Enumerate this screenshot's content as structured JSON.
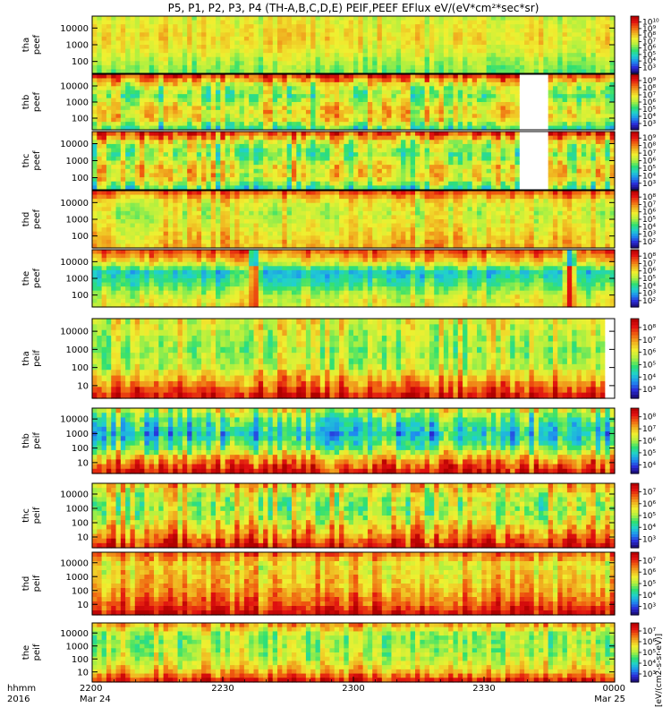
{
  "chart_data": {
    "type": "heatmap",
    "title": "P5, P1, P2, P3, P4 (TH-A,B,C,D,E) PEIF,PEEF EFlux eV/(eV*cm²*sec*sr)",
    "colorbar_label": "[eV/(cm2-s-sr-eV)]",
    "colormap": [
      "#1a0a6e",
      "#2a2cd8",
      "#1f8cf0",
      "#20d0d0",
      "#30e070",
      "#b0f040",
      "#f0f030",
      "#f0b020",
      "#f06010",
      "#e01010",
      "#b00000"
    ],
    "panels": [
      {
        "label_top": "tha",
        "label_bottom": "peef",
        "yticks": [
          "10000",
          "1000",
          "100"
        ],
        "cbar_ticks": [
          "10¹⁰",
          "10⁹",
          "10⁸",
          "10⁷",
          "10⁶",
          "10⁵",
          "10⁴",
          "10³"
        ],
        "profile": [
          0.55,
          0.6,
          0.62,
          0.58,
          0.5,
          0.45
        ],
        "variability": 0.08,
        "gap": null,
        "dips": []
      },
      {
        "label_top": "thb",
        "label_bottom": "peef",
        "yticks": [
          "10000",
          "1000",
          "100"
        ],
        "cbar_ticks": [
          "10⁹",
          "10⁸",
          "10⁷",
          "10⁶",
          "10⁵",
          "10⁴",
          "10³"
        ],
        "profile": [
          0.9,
          0.55,
          0.45,
          0.6,
          0.62,
          0.35
        ],
        "variability": 0.15,
        "gap": [
          0.815,
          0.87
        ],
        "dips": []
      },
      {
        "label_top": "thc",
        "label_bottom": "peef",
        "yticks": [
          "10000",
          "1000",
          "100"
        ],
        "cbar_ticks": [
          "10⁹",
          "10⁸",
          "10⁷",
          "10⁶",
          "10⁵",
          "10⁴",
          "10³"
        ],
        "profile": [
          0.9,
          0.55,
          0.45,
          0.6,
          0.62,
          0.35
        ],
        "variability": 0.15,
        "gap": [
          0.815,
          0.87
        ],
        "dips": []
      },
      {
        "label_top": "thd",
        "label_bottom": "peef",
        "yticks": [
          "10000",
          "1000",
          "100"
        ],
        "cbar_ticks": [
          "10⁸",
          "10⁷",
          "10⁶",
          "10⁵",
          "10⁴",
          "10³",
          "10²"
        ],
        "profile": [
          0.85,
          0.6,
          0.55,
          0.6,
          0.65,
          0.7
        ],
        "variability": 0.1,
        "gap": null,
        "dips": []
      },
      {
        "label_top": "the",
        "label_bottom": "peef",
        "yticks": [
          "10000",
          "1000",
          "100"
        ],
        "cbar_ticks": [
          "10⁸",
          "10⁷",
          "10⁶",
          "10⁵",
          "10⁴",
          "10³",
          "10²"
        ],
        "profile": [
          0.85,
          0.65,
          0.3,
          0.4,
          0.55,
          0.6
        ],
        "variability": 0.1,
        "gap": null,
        "dips": [
          0.31,
          0.915
        ]
      },
      {
        "label_top": "tha",
        "label_bottom": "peif",
        "yticks": [
          "10000",
          "1000",
          "100",
          "10"
        ],
        "cbar_ticks": [
          "10⁸",
          "10⁷",
          "10⁶",
          "10⁵",
          "10⁴",
          "10³"
        ],
        "profile": [
          0.6,
          0.55,
          0.5,
          0.55,
          0.75,
          0.95
        ],
        "variability": 0.12,
        "gap": [
          0.985,
          1.0
        ],
        "dips": []
      },
      {
        "label_top": "thb",
        "label_bottom": "peif",
        "yticks": [
          "10000",
          "1000",
          "100",
          "10"
        ],
        "cbar_ticks": [
          "10⁸",
          "10⁷",
          "10⁶",
          "10⁵",
          "10⁴"
        ],
        "profile": [
          0.6,
          0.4,
          0.3,
          0.45,
          0.75,
          0.95
        ],
        "variability": 0.15,
        "gap": null,
        "dips": []
      },
      {
        "label_top": "thc",
        "label_bottom": "peif",
        "yticks": [
          "10000",
          "1000",
          "100",
          "10"
        ],
        "cbar_ticks": [
          "10⁷",
          "10⁶",
          "10⁵",
          "10⁴",
          "10³"
        ],
        "profile": [
          0.7,
          0.55,
          0.5,
          0.6,
          0.75,
          0.95
        ],
        "variability": 0.15,
        "gap": null,
        "dips": []
      },
      {
        "label_top": "thd",
        "label_bottom": "peif",
        "yticks": [
          "10000",
          "1000",
          "100",
          "10"
        ],
        "cbar_ticks": [
          "10⁷",
          "10⁶",
          "10⁵",
          "10⁴",
          "10³"
        ],
        "profile": [
          0.8,
          0.6,
          0.65,
          0.7,
          0.8,
          0.95
        ],
        "variability": 0.12,
        "gap": null,
        "dips": []
      },
      {
        "label_top": "the",
        "label_bottom": "peif",
        "yticks": [
          "10000",
          "1000",
          "100",
          "10"
        ],
        "cbar_ticks": [
          "10⁷",
          "10⁶",
          "10⁵",
          "10⁴",
          "10³"
        ],
        "profile": [
          0.75,
          0.5,
          0.5,
          0.55,
          0.65,
          0.95
        ],
        "variability": 0.12,
        "gap": null,
        "dips": []
      }
    ],
    "x_axis": {
      "row1_label": "hhmm",
      "row2_label": "2016",
      "ticks": [
        {
          "pos": 0.0,
          "time": "2200",
          "date": "Mar 24"
        },
        {
          "pos": 0.25,
          "time": "2230",
          "date": ""
        },
        {
          "pos": 0.5,
          "time": "2300",
          "date": ""
        },
        {
          "pos": 0.75,
          "time": "2330",
          "date": ""
        },
        {
          "pos": 1.0,
          "time": "0000",
          "date": "Mar 25"
        }
      ]
    }
  }
}
